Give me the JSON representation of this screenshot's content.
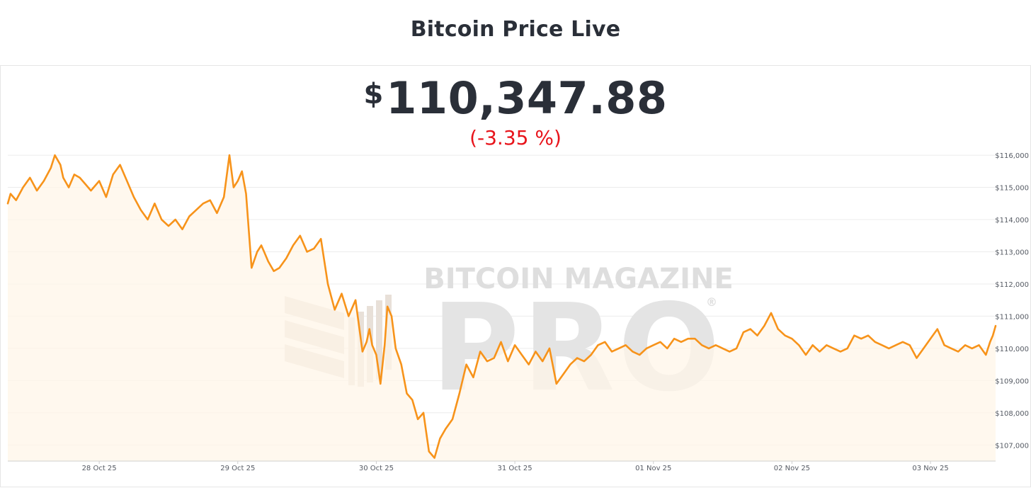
{
  "header": {
    "title": "Bitcoin Price Live"
  },
  "price": {
    "currency_symbol": "$",
    "value": "110,347.88",
    "change": "(-3.35 %)",
    "change_color": "#e8141b"
  },
  "watermark": {
    "brand": "BITCOIN MAGAZINE",
    "product": "PRO",
    "mark": "®"
  },
  "colors": {
    "line": "#f7931a",
    "area": "#fff5e8",
    "text": "#2a2f38"
  },
  "chart_data": {
    "type": "area",
    "grid": "horizontal",
    "ylim": [
      106500,
      116200
    ],
    "y_ticks": [
      107000,
      108000,
      109000,
      110000,
      111000,
      112000,
      113000,
      114000,
      115000,
      116000
    ],
    "y_tick_labels": [
      "$107,000",
      "$108,000",
      "$109,000",
      "$110,000",
      "$111,000",
      "$112,000",
      "$113,000",
      "$114,000",
      "$115,000",
      "$116,000"
    ],
    "x_tick_labels": [
      "28 Oct 25",
      "29 Oct 25",
      "30 Oct 25",
      "31 Oct 25",
      "01 Nov 25",
      "02 Nov 25",
      "03 Nov 25"
    ],
    "x_tick_positions": [
      1,
      2,
      3,
      4,
      5,
      6,
      7
    ],
    "xlim": [
      0.34,
      7.47
    ],
    "series": [
      {
        "x": [
          0.34,
          0.36,
          0.4,
          0.45,
          0.5,
          0.55,
          0.6,
          0.65,
          0.68,
          0.72,
          0.74,
          0.78,
          0.82,
          0.86,
          0.9,
          0.94,
          1.0,
          1.05,
          1.1,
          1.15,
          1.2,
          1.25,
          1.3,
          1.35,
          1.4,
          1.45,
          1.5,
          1.55,
          1.6,
          1.65,
          1.7,
          1.75,
          1.8,
          1.85,
          1.9,
          1.94,
          1.97,
          2.0,
          2.03,
          2.06,
          2.1,
          2.14,
          2.17,
          2.19,
          2.22,
          2.26,
          2.3,
          2.35,
          2.4,
          2.45,
          2.5,
          2.55,
          2.6,
          2.65,
          2.7,
          2.75,
          2.8,
          2.85,
          2.9,
          2.93,
          2.95,
          2.97,
          3.0,
          3.03,
          3.06,
          3.08,
          3.11,
          3.14,
          3.18,
          3.22,
          3.26,
          3.3,
          3.34,
          3.38,
          3.42,
          3.46,
          3.5,
          3.55,
          3.6,
          3.65,
          3.7,
          3.75,
          3.8,
          3.85,
          3.9,
          3.95,
          4.0,
          4.05,
          4.1,
          4.15,
          4.2,
          4.25,
          4.3,
          4.35,
          4.4,
          4.45,
          4.5,
          4.55,
          4.6,
          4.65,
          4.7,
          4.75,
          4.8,
          4.85,
          4.9,
          4.95,
          5.0,
          5.05,
          5.1,
          5.15,
          5.2,
          5.25,
          5.3,
          5.35,
          5.4,
          5.45,
          5.5,
          5.55,
          5.6,
          5.65,
          5.7,
          5.75,
          5.8,
          5.85,
          5.9,
          5.95,
          6.0,
          6.05,
          6.1,
          6.15,
          6.2,
          6.25,
          6.3,
          6.35,
          6.4,
          6.45,
          6.5,
          6.55,
          6.6,
          6.65,
          6.7,
          6.75,
          6.8,
          6.85,
          6.9,
          6.95,
          7.0,
          7.05,
          7.1,
          7.15,
          7.2,
          7.25,
          7.3,
          7.35,
          7.4,
          7.43,
          7.45,
          7.47
        ],
        "y": [
          114500,
          114800,
          114600,
          115000,
          115300,
          114900,
          115200,
          115600,
          116000,
          115700,
          115300,
          115000,
          115400,
          115300,
          115100,
          114900,
          115200,
          114700,
          115400,
          115700,
          115200,
          114700,
          114300,
          114000,
          114500,
          114000,
          113800,
          114000,
          113700,
          114100,
          114300,
          114500,
          114600,
          114200,
          114700,
          116000,
          115000,
          115200,
          115500,
          114800,
          112500,
          113000,
          113200,
          113000,
          112700,
          112400,
          112500,
          112800,
          113200,
          113500,
          113000,
          113100,
          113400,
          112000,
          111200,
          111700,
          111000,
          111500,
          109900,
          110200,
          110600,
          110100,
          109800,
          108900,
          110100,
          111300,
          111000,
          110000,
          109500,
          108600,
          108400,
          107800,
          108000,
          106800,
          106600,
          107200,
          107500,
          107800,
          108600,
          109500,
          109100,
          109900,
          109600,
          109700,
          110200,
          109600,
          110100,
          109800,
          109500,
          109900,
          109600,
          110000,
          108900,
          109200,
          109500,
          109700,
          109600,
          109800,
          110100,
          110200,
          109900,
          110000,
          110100,
          109900,
          109800,
          110000,
          110100,
          110200,
          110000,
          110300,
          110200,
          110300,
          110300,
          110100,
          110000,
          110100,
          110000,
          109900,
          110000,
          110500,
          110600,
          110400,
          110700,
          111100,
          110600,
          110400,
          110300,
          110100,
          109800,
          110100,
          109900,
          110100,
          110000,
          109900,
          110000,
          110400,
          110300,
          110400,
          110200,
          110100,
          110000,
          110100,
          110200,
          110100,
          109700,
          110000,
          110300,
          110600,
          110100,
          110000,
          109900,
          110100,
          110000,
          110100,
          109800,
          110200,
          110400,
          110700
        ],
        "color": "#f7931a"
      }
    ]
  }
}
